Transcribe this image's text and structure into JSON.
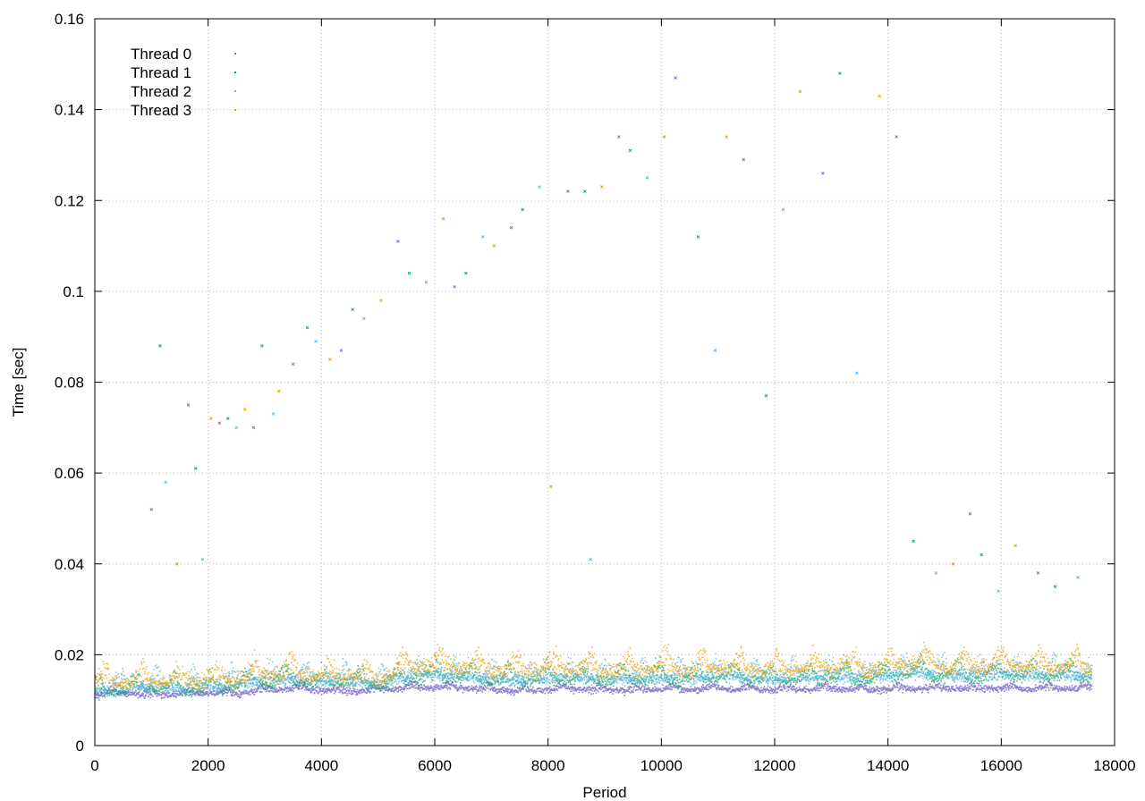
{
  "chart_data": {
    "type": "scatter",
    "title": "",
    "xlabel": "Period",
    "ylabel": "Time [sec]",
    "xlim": [
      0,
      18000
    ],
    "ylim": [
      0,
      0.16
    ],
    "x_ticks": [
      "0",
      "2000",
      "4000",
      "6000",
      "8000",
      "10000",
      "12000",
      "14000",
      "16000",
      "18000"
    ],
    "y_ticks": [
      "0",
      "0.02",
      "0.04",
      "0.06",
      "0.08",
      "0.1",
      "0.12",
      "0.14",
      "0.16"
    ],
    "grid": true,
    "legend_position": "top-left",
    "series": [
      {
        "name": "Thread 0",
        "color": "#7b68c8",
        "x": [
          0,
          500,
          1000,
          1500,
          2000,
          2500,
          3000,
          3500,
          4000,
          4500,
          5000,
          5500,
          6000,
          6500,
          7000,
          7500,
          8000,
          8500,
          9000,
          9500,
          10000,
          10500,
          11000,
          11500,
          12000,
          12500,
          13000,
          13500,
          14000,
          14500,
          15000,
          15500,
          16000,
          16500,
          17000,
          17600
        ],
        "y": [
          0.011,
          0.0115,
          0.011,
          0.0112,
          0.0115,
          0.0112,
          0.012,
          0.0125,
          0.012,
          0.0118,
          0.0122,
          0.0125,
          0.0128,
          0.0125,
          0.0122,
          0.012,
          0.0122,
          0.0123,
          0.012,
          0.0122,
          0.0123,
          0.0122,
          0.0124,
          0.0123,
          0.0122,
          0.0123,
          0.0124,
          0.0122,
          0.0123,
          0.0124,
          0.0125,
          0.0124,
          0.0125,
          0.0124,
          0.0125,
          0.0124
        ]
      },
      {
        "name": "Thread 1",
        "color": "#009e73",
        "x": [
          0,
          500,
          1000,
          1500,
          2000,
          2500,
          3000,
          3500,
          4000,
          4500,
          5000,
          5500,
          6000,
          6500,
          7000,
          7500,
          8000,
          8500,
          9000,
          9500,
          10000,
          10500,
          11000,
          11500,
          12000,
          12500,
          13000,
          13500,
          14000,
          14500,
          15000,
          15500,
          16000,
          16500,
          17000,
          17600
        ],
        "y": [
          0.0115,
          0.012,
          0.0125,
          0.012,
          0.0125,
          0.013,
          0.0135,
          0.014,
          0.0135,
          0.0138,
          0.013,
          0.0145,
          0.015,
          0.0148,
          0.0142,
          0.014,
          0.0145,
          0.0142,
          0.014,
          0.0142,
          0.0145,
          0.0143,
          0.015,
          0.0145,
          0.0142,
          0.0145,
          0.0148,
          0.0146,
          0.0152,
          0.0155,
          0.015,
          0.0148,
          0.0155,
          0.015,
          0.0152,
          0.015
        ]
      },
      {
        "name": "Thread 2",
        "color": "#56b4e9",
        "x": [
          0,
          500,
          1000,
          1500,
          2000,
          2500,
          3000,
          3500,
          4000,
          4500,
          5000,
          5500,
          6000,
          6500,
          7000,
          7500,
          8000,
          8500,
          9000,
          9500,
          10000,
          10500,
          11000,
          11500,
          12000,
          12500,
          13000,
          13500,
          14000,
          14500,
          15000,
          15500,
          16000,
          16500,
          17000,
          17600
        ],
        "y": [
          0.012,
          0.0125,
          0.013,
          0.0122,
          0.0128,
          0.0132,
          0.014,
          0.0145,
          0.014,
          0.0142,
          0.0132,
          0.015,
          0.0155,
          0.015,
          0.0145,
          0.0142,
          0.0148,
          0.0145,
          0.0143,
          0.0145,
          0.0148,
          0.0146,
          0.0152,
          0.0148,
          0.0145,
          0.0148,
          0.015,
          0.0148,
          0.0155,
          0.0158,
          0.0152,
          0.015,
          0.0158,
          0.0152,
          0.0155,
          0.0152
        ]
      },
      {
        "name": "Thread 3",
        "color": "#e69f00",
        "x": [
          0,
          500,
          1000,
          1500,
          2000,
          2500,
          3000,
          3500,
          4000,
          4500,
          5000,
          5500,
          6000,
          6500,
          7000,
          7500,
          8000,
          8500,
          9000,
          9500,
          10000,
          10500,
          11000,
          11500,
          12000,
          12500,
          13000,
          13500,
          14000,
          14500,
          15000,
          15500,
          16000,
          16500,
          17000,
          17600
        ],
        "y": [
          0.0135,
          0.0138,
          0.014,
          0.0138,
          0.0142,
          0.0145,
          0.015,
          0.0155,
          0.015,
          0.0152,
          0.014,
          0.017,
          0.0175,
          0.017,
          0.0165,
          0.016,
          0.0168,
          0.0165,
          0.016,
          0.0163,
          0.0168,
          0.0165,
          0.017,
          0.0167,
          0.0165,
          0.0168,
          0.017,
          0.0167,
          0.0172,
          0.0178,
          0.017,
          0.0168,
          0.0175,
          0.017,
          0.0172,
          0.017
        ]
      }
    ],
    "outliers_x": [
      1000,
      1150,
      1250,
      1450,
      1650,
      1780,
      1900,
      2050,
      2200,
      2350,
      2500,
      2650,
      2800,
      2950,
      3150,
      3250,
      3500,
      3750,
      3900,
      4150,
      4350,
      4550,
      4750,
      5050,
      5350,
      5550,
      5850,
      6150,
      6350,
      6550,
      6850,
      7050,
      7350,
      7550,
      7850,
      8050,
      8350,
      8650,
      8750,
      8950,
      9250,
      9450,
      9750,
      10050,
      10250,
      10650,
      10950,
      11150,
      11450,
      11850,
      12150,
      12450,
      12850,
      13150,
      13450,
      13850,
      14150,
      14450,
      14850,
      15150,
      15450,
      15650,
      15950,
      16250,
      16650,
      16950,
      17350
    ],
    "outliers_y": [
      0.052,
      0.088,
      0.058,
      0.04,
      0.075,
      0.061,
      0.041,
      0.072,
      0.071,
      0.072,
      0.07,
      0.074,
      0.07,
      0.088,
      0.073,
      0.078,
      0.084,
      0.092,
      0.089,
      0.085,
      0.087,
      0.096,
      0.094,
      0.098,
      0.111,
      0.104,
      0.102,
      0.116,
      0.101,
      0.104,
      0.112,
      0.11,
      0.114,
      0.118,
      0.123,
      0.057,
      0.122,
      0.122,
      0.041,
      0.123,
      0.134,
      0.131,
      0.125,
      0.134,
      0.147,
      0.112,
      0.087,
      0.134,
      0.129,
      0.077,
      0.118,
      0.144,
      0.126,
      0.148,
      0.082,
      0.143,
      0.134,
      0.045,
      0.038,
      0.04,
      0.051,
      0.042,
      0.034,
      0.044,
      0.038,
      0.035,
      0.037
    ]
  }
}
